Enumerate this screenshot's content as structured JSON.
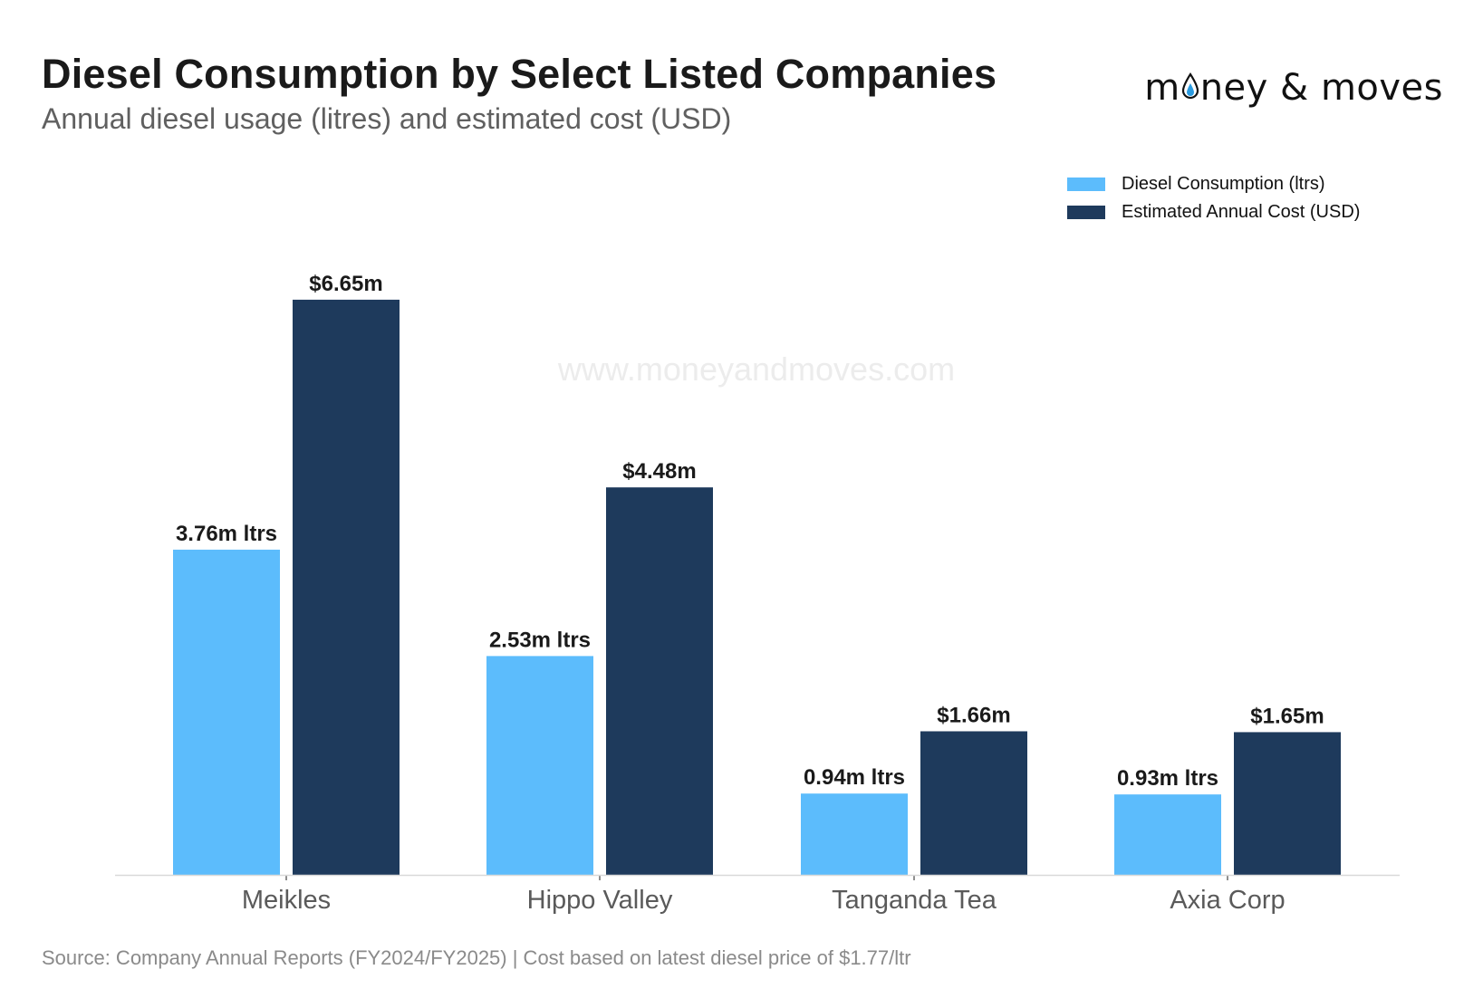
{
  "header": {
    "title": "Diesel Consumption by Select Listed Companies",
    "subtitle": "Annual diesel usage (litres) and estimated cost (USD)"
  },
  "logo": {
    "text_before": "m",
    "text_after": "ney & moves",
    "full_text": "money & moves"
  },
  "watermark": "www.moneyandmoves.com",
  "footer": {
    "source": "Source: Company Annual Reports (FY2024/FY2025) | Cost based on latest diesel price of $1.77/ltr"
  },
  "colors": {
    "consumption": "#5cbcfc",
    "cost": "#1e3a5c",
    "axis": "#d9d9d9",
    "category_label": "#5a5a5a",
    "data_label": "#1a1a1a"
  },
  "chart_data": {
    "type": "bar",
    "categories": [
      "Meikles",
      "Hippo Valley",
      "Tanganda Tea",
      "Axia Corp"
    ],
    "series": [
      {
        "name": "Diesel Consumption (ltrs)",
        "values": [
          3.76,
          2.53,
          0.94,
          0.93
        ],
        "unit": "million litres",
        "labels": [
          "3.76m ltrs",
          "2.53m ltrs",
          "0.94m ltrs",
          "0.93m ltrs"
        ]
      },
      {
        "name": "Estimated Annual Cost (USD)",
        "values": [
          6.65,
          4.48,
          1.66,
          1.65
        ],
        "unit": "million USD",
        "labels": [
          "$6.65m",
          "$4.48m",
          "$1.66m",
          "$1.65m"
        ]
      }
    ],
    "ylim": [
      0,
      7.2
    ],
    "grid": false,
    "legend_position": "top-right",
    "xlabel": "",
    "ylabel": ""
  }
}
